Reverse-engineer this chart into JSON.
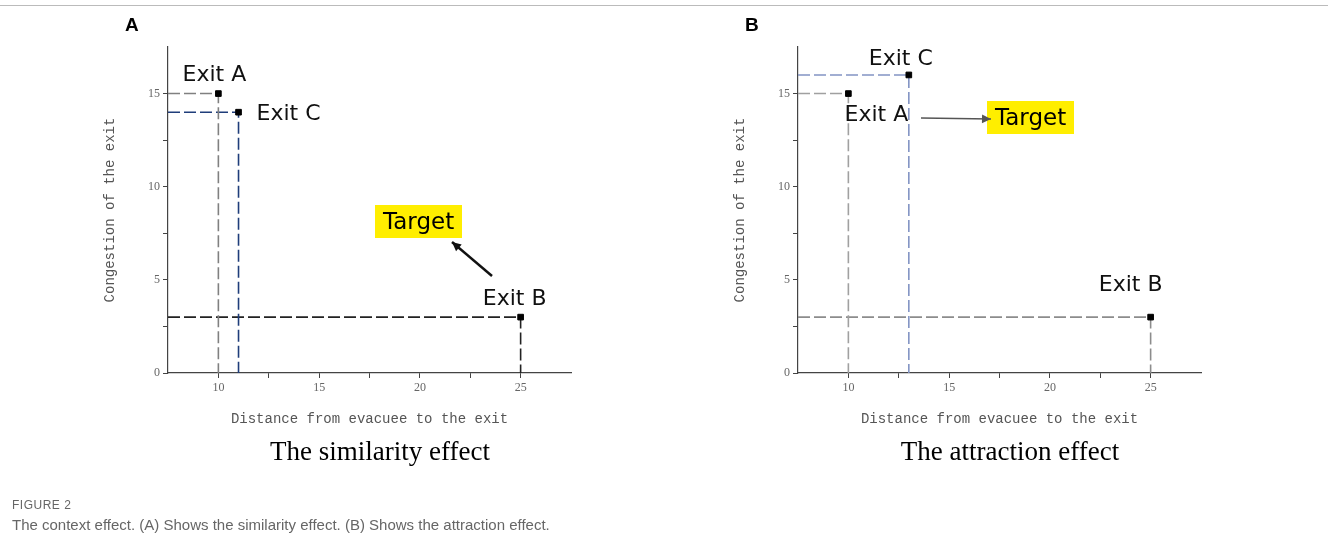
{
  "chart_data": [
    {
      "type": "scatter",
      "title": "A",
      "subtitle": "The similarity effect",
      "xlabel": "Distance from evacuee to the exit",
      "ylabel": "Congestion of the exit",
      "xlim": [
        7.5,
        27.5
      ],
      "xticks": [
        10,
        {
          "value": 12.5,
          "label": null
        },
        15,
        {
          "value": 17.5,
          "label": null
        },
        20,
        {
          "value": 22.5,
          "label": null
        },
        25
      ],
      "ylim": [
        0,
        17.5
      ],
      "yticks": [
        0,
        {
          "value": 2.5,
          "label": null
        },
        5,
        {
          "value": 7.5,
          "label": null
        },
        10,
        {
          "value": 12.5,
          "label": null
        },
        15
      ],
      "grid": false,
      "legend": false,
      "marker": "square",
      "series": [
        {
          "name": "Exit A",
          "color": "#000000",
          "x": [
            10
          ],
          "values": [
            15
          ]
        },
        {
          "name": "Exit C",
          "color": "#000000",
          "x": [
            11
          ],
          "values": [
            14
          ]
        },
        {
          "name": "Exit B",
          "color": "#000000",
          "x": [
            25
          ],
          "values": [
            3
          ]
        },
        {
          "type": "line",
          "color": "#808080",
          "line_style": "dashed",
          "marker": "none",
          "x": [
            7.5,
            10,
            10
          ],
          "values": [
            15,
            15,
            0
          ]
        },
        {
          "type": "line",
          "color": "#1f3d7a",
          "line_style": "dashed",
          "marker": "none",
          "x": [
            7.5,
            11,
            11
          ],
          "values": [
            14,
            14,
            0
          ]
        },
        {
          "type": "line",
          "color": "#222222",
          "line_style": "dashed",
          "marker": "none",
          "x": [
            7.5,
            25,
            25
          ],
          "values": [
            3,
            3,
            0
          ]
        }
      ],
      "annotations": [
        "Target",
        "FIGURE 2",
        "The context effect. (A) Shows the similarity effect. (B) Shows the attraction effect."
      ]
    },
    {
      "type": "scatter",
      "title": "B",
      "subtitle": "The attraction effect",
      "xlabel": "Distance from evacuee to the exit",
      "ylabel": "Congestion of the exit",
      "xlim": [
        7.5,
        27.5
      ],
      "xticks": [
        10,
        {
          "value": 12.5,
          "label": null
        },
        15,
        {
          "value": 17.5,
          "label": null
        },
        20,
        {
          "value": 22.5,
          "label": null
        },
        25
      ],
      "ylim": [
        0,
        17.5
      ],
      "yticks": [
        0,
        {
          "value": 2.5,
          "label": null
        },
        5,
        {
          "value": 7.5,
          "label": null
        },
        10,
        {
          "value": 12.5,
          "label": null
        },
        15
      ],
      "grid": false,
      "legend": false,
      "marker": "square",
      "series": [
        {
          "name": "Exit A",
          "color": "#000000",
          "x": [
            10
          ],
          "values": [
            15
          ]
        },
        {
          "name": "Exit C",
          "color": "#000000",
          "x": [
            13
          ],
          "values": [
            16
          ]
        },
        {
          "name": "Exit B",
          "color": "#000000",
          "x": [
            25
          ],
          "values": [
            3
          ]
        },
        {
          "type": "line",
          "color": "#a0a0a0",
          "line_style": "dashed",
          "marker": "none",
          "x": [
            7.5,
            10,
            10
          ],
          "values": [
            15,
            15,
            0
          ]
        },
        {
          "type": "line",
          "color": "#8394c4",
          "line_style": "dashed",
          "marker": "none",
          "x": [
            7.5,
            13,
            13
          ],
          "values": [
            16,
            16,
            0
          ]
        },
        {
          "type": "line",
          "color": "#8c8c8c",
          "line_style": "dashed",
          "marker": "none",
          "x": [
            7.5,
            25,
            25
          ],
          "values": [
            3,
            3,
            0
          ]
        }
      ],
      "annotations": [
        "Target"
      ]
    }
  ]
}
